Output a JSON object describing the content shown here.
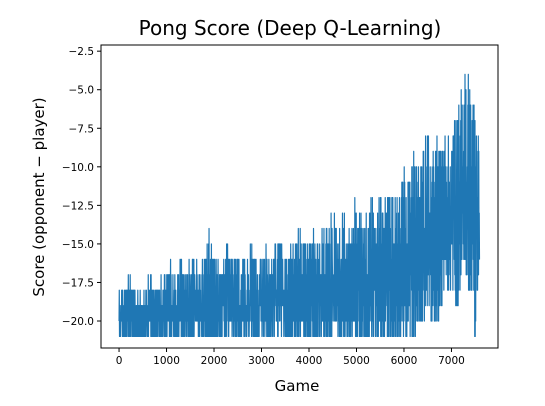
{
  "chart_data": {
    "type": "line",
    "title": "Pong Score (Deep Q-Learning)",
    "xlabel": "Game",
    "ylabel": "Score (opponent − player)",
    "xlim": [
      -380,
      7980
    ],
    "ylim": [
      -21.75,
      -2.1
    ],
    "xticks": [
      0,
      1000,
      2000,
      3000,
      4000,
      5000,
      6000,
      7000
    ],
    "xtick_labels": [
      "0",
      "1000",
      "2000",
      "3000",
      "4000",
      "5000",
      "6000",
      "7000"
    ],
    "yticks": [
      -20.0,
      -17.5,
      -15.0,
      -12.5,
      -10.0,
      -7.5,
      -5.0,
      -2.5
    ],
    "ytick_labels": [
      "−20.0",
      "−17.5",
      "−15.0",
      "−12.5",
      "−10.0",
      "−7.5",
      "−5.0",
      "−2.5"
    ],
    "grid": false,
    "line_color": "#1f77b4",
    "series": [
      {
        "x": [
          0,
          100,
          200,
          300,
          400,
          500,
          600,
          700,
          800,
          900,
          1000,
          1100,
          1200,
          1300,
          1400,
          1500,
          1600,
          1700,
          1800,
          1900,
          2000,
          2100,
          2200,
          2300,
          2400,
          2500,
          2600,
          2700,
          2800,
          2900,
          3000,
          3100,
          3200,
          3300,
          3400,
          3500,
          3600,
          3700,
          3800,
          3900,
          4000,
          4100,
          4200,
          4300,
          4400,
          4500,
          4600,
          4700,
          4800,
          4900,
          5000,
          5100,
          5200,
          5300,
          5400,
          5500,
          5600,
          5700,
          5800,
          5900,
          6000,
          6100,
          6200,
          6300,
          6400,
          6500,
          6600,
          6700,
          6800,
          6900,
          7000,
          7100,
          7200,
          7300,
          7400,
          7500,
          7590
        ],
        "max": [
          -18,
          -18,
          -17,
          -18,
          -18,
          -18,
          -17,
          -17,
          -18,
          -17,
          -17,
          -16,
          -17,
          -16,
          -17,
          -16,
          -16,
          -17,
          -16,
          -14,
          -16,
          -16,
          -16,
          -15,
          -16,
          -16,
          -16,
          -16,
          -15,
          -16,
          -16,
          -15,
          -16,
          -15,
          -14,
          -16,
          -15,
          -15,
          -14,
          -15,
          -15,
          -14,
          -15,
          -14,
          -14,
          -13,
          -14,
          -13,
          -14,
          -13,
          -12,
          -13,
          -13,
          -12,
          -13,
          -12,
          -12,
          -11,
          -12,
          -12,
          -10,
          -11,
          -9,
          -10,
          -9,
          -8,
          -9,
          -8,
          -9,
          -8,
          -8,
          -6,
          -5,
          -3,
          -5,
          -6,
          -9
        ],
        "min": [
          -21,
          -21,
          -21,
          -21,
          -21,
          -21,
          -21,
          -21,
          -21,
          -21,
          -21,
          -21,
          -21,
          -21,
          -21,
          -21,
          -21,
          -21,
          -21,
          -21,
          -21,
          -21,
          -21,
          -21,
          -21,
          -21,
          -21,
          -21,
          -21,
          -21,
          -21,
          -21,
          -21,
          -21,
          -21,
          -21,
          -21,
          -21,
          -21,
          -21,
          -21,
          -21,
          -21,
          -21,
          -21,
          -21,
          -21,
          -21,
          -21,
          -21,
          -21,
          -21,
          -21,
          -21,
          -21,
          -21,
          -21,
          -21,
          -21,
          -21,
          -21,
          -21,
          -21,
          -20,
          -20,
          -19,
          -20,
          -20,
          -19,
          -18,
          -18,
          -19,
          -18,
          -17,
          -18,
          -21,
          -16
        ]
      }
    ]
  }
}
